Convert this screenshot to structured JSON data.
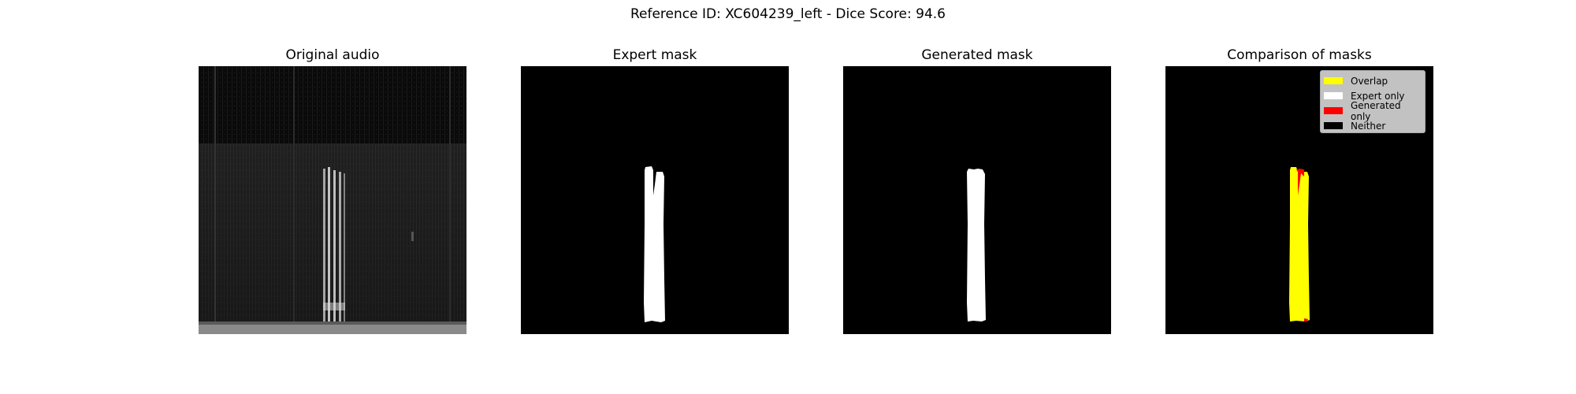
{
  "figure": {
    "suptitle": "Reference ID: XC604239_left - Dice Score: 94.6"
  },
  "panels": [
    {
      "title": "Original audio"
    },
    {
      "title": "Expert mask"
    },
    {
      "title": "Generated mask"
    },
    {
      "title": "Comparison of masks"
    }
  ],
  "legend": {
    "items": [
      {
        "label": "Overlap",
        "color": "#ffff00"
      },
      {
        "label": "Expert only",
        "color": "#ffffff"
      },
      {
        "label": "Generated only",
        "color": "#ff0000"
      },
      {
        "label": "Neither",
        "color": "#000000"
      }
    ]
  },
  "colors": {
    "background": "#000000",
    "mask": "#ffffff",
    "overlap": "#ffff00",
    "generated_only": "#ff0000"
  }
}
